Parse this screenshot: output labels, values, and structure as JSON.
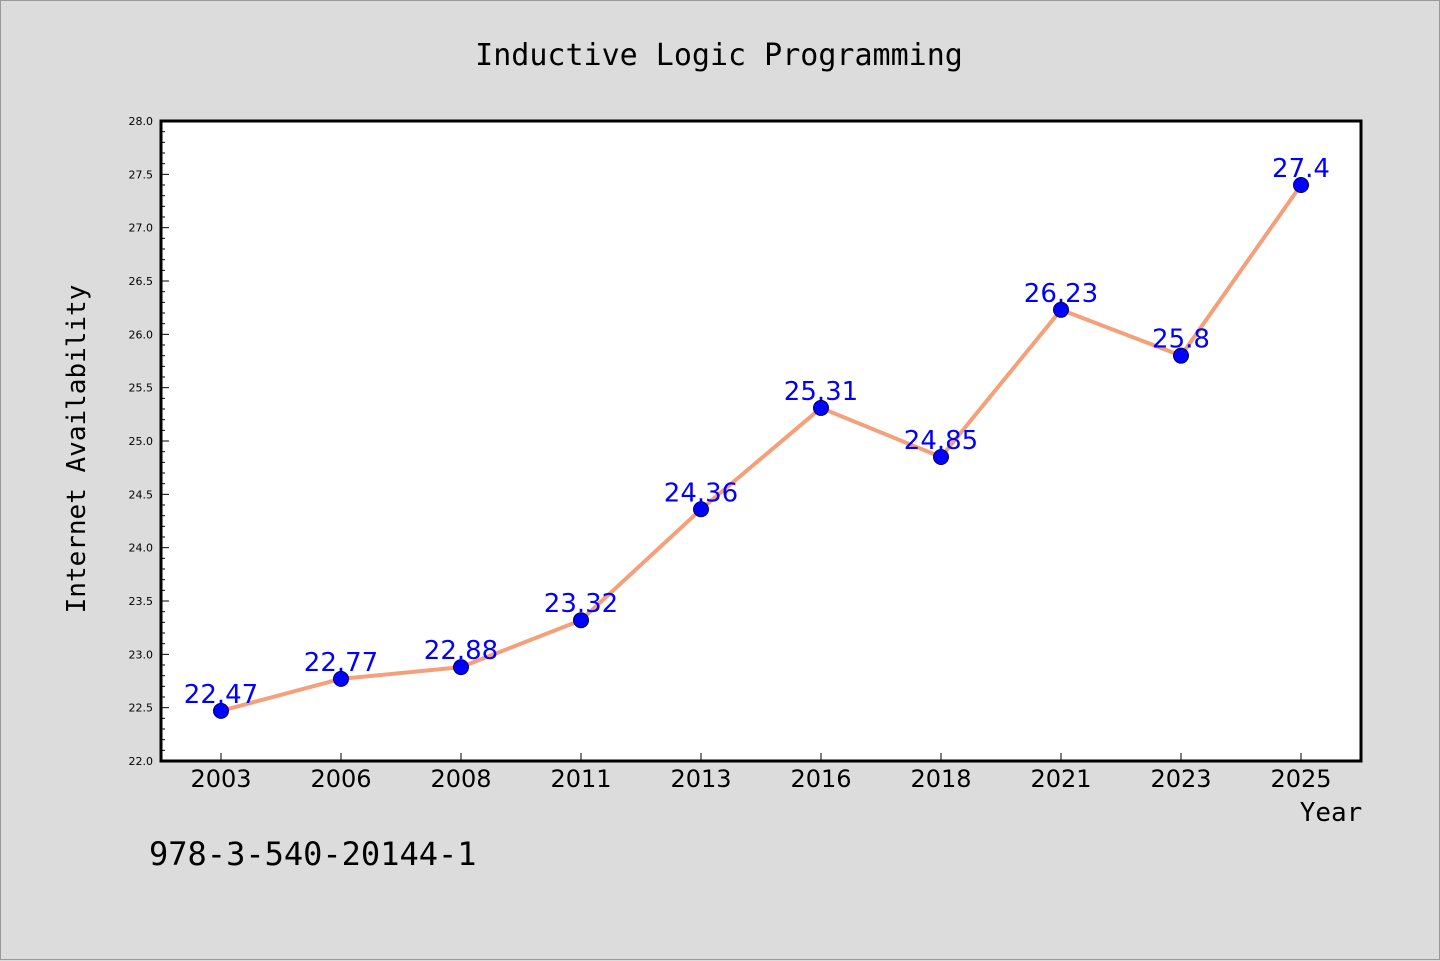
{
  "chart_data": {
    "type": "line",
    "title": "Inductive Logic Programming",
    "xlabel": "Year",
    "ylabel": "Internet Availability",
    "categories": [
      "2003",
      "2006",
      "2008",
      "2011",
      "2013",
      "2016",
      "2018",
      "2021",
      "2023",
      "2025"
    ],
    "values": [
      22.47,
      22.77,
      22.88,
      23.32,
      24.36,
      25.31,
      24.85,
      26.23,
      25.8,
      27.4
    ],
    "data_labels": [
      "22.47",
      "22.77",
      "22.88",
      "23.32",
      "24.36",
      "25.31",
      "24.85",
      "26.23",
      "25.8",
      "27.4"
    ],
    "ylim": [
      22.0,
      28.0
    ],
    "yticks": [
      "22.0",
      "22.5",
      "23.0",
      "23.5",
      "24.0",
      "24.5",
      "25.0",
      "25.5",
      "26.0",
      "26.5",
      "27.0",
      "27.5",
      "28.0"
    ],
    "grid": false,
    "line_color": "#f4a07a",
    "marker_color": "#0000ff",
    "label_color": "#0000ff"
  },
  "footer": {
    "isbn": "978-3-540-20144-1"
  }
}
